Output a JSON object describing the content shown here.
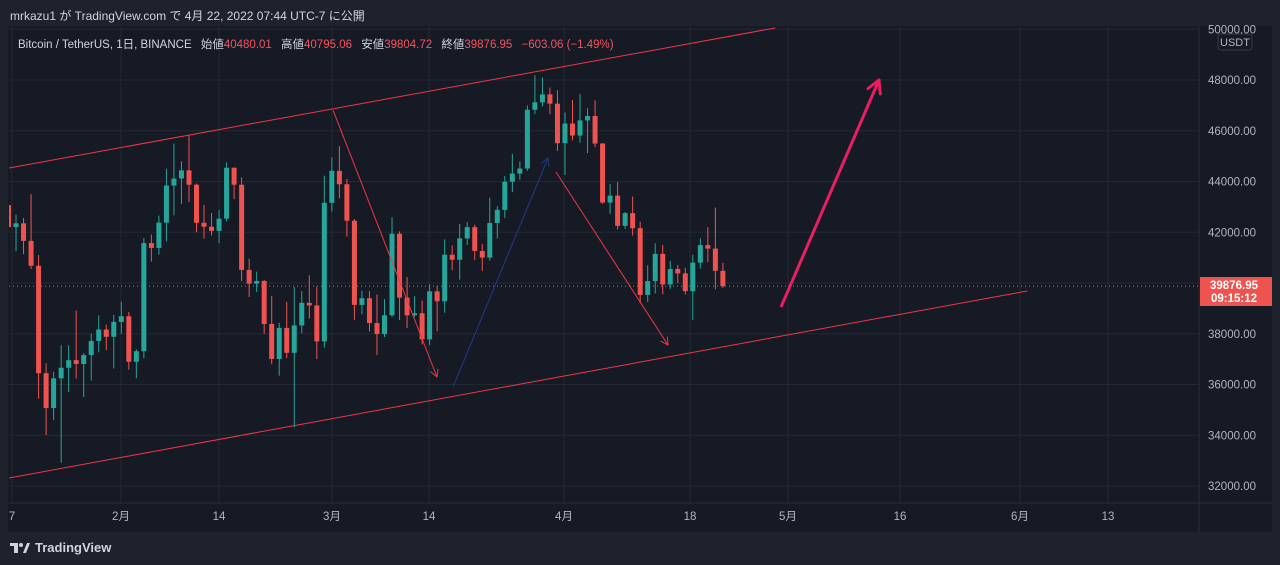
{
  "header": {
    "published": "mrkazu1 が TradingView.com で 4月 22, 2022 07:44 UTC-7 に公開"
  },
  "legend": {
    "symbol": "Bitcoin / TetherUS, 1日, BINANCE",
    "open_label": "始値",
    "open": "40480.01",
    "high_label": "高値",
    "high": "40795.06",
    "low_label": "安値",
    "low": "39804.72",
    "close_label": "終値",
    "close": "39876.95",
    "change": "−603.06 (−1.49%)"
  },
  "price_axis": {
    "currency": "USDT",
    "ticks": [
      "50000.00",
      "48000.00",
      "46000.00",
      "44000.00",
      "42000.00",
      "38000.00",
      "36000.00",
      "34000.00",
      "32000.00"
    ],
    "last_price": "39876.95",
    "countdown": "09:15:12"
  },
  "time_axis": {
    "ticks": [
      "7",
      "2月",
      "14",
      "3月",
      "14",
      "4月",
      "18",
      "5月",
      "16",
      "6月",
      "13"
    ]
  },
  "footer": {
    "brand": "TradingView"
  },
  "colors": {
    "up": "#26a69a",
    "down": "#ef5350",
    "background": "#161a25",
    "channel": "#f23645",
    "blue_arrow": "#1e3a8a",
    "pink_arrow": "#e91e63"
  },
  "chart_data": {
    "type": "candlestick",
    "title": "Bitcoin / TetherUS, 1日, BINANCE",
    "first_date": "2022-01-17",
    "ylim": [
      31500,
      50500
    ],
    "ylabel": "USDT",
    "ohlc": [
      [
        43071,
        43176,
        41540,
        42201
      ],
      [
        42201,
        42691,
        41250,
        42352
      ],
      [
        42352,
        42559,
        41138,
        41660
      ],
      [
        41660,
        43505,
        40553,
        40680
      ],
      [
        40680,
        41100,
        35440,
        36445
      ],
      [
        36445,
        36835,
        34008,
        35071
      ],
      [
        35071,
        36499,
        34601,
        36244
      ],
      [
        36244,
        37550,
        32917,
        36660
      ],
      [
        36660,
        37545,
        35701,
        36958
      ],
      [
        36958,
        38919,
        36234,
        36809
      ],
      [
        36809,
        37234,
        35507,
        37160
      ],
      [
        37160,
        38000,
        36155,
        37716
      ],
      [
        37716,
        38720,
        37268,
        38166
      ],
      [
        38166,
        38359,
        37351,
        37881
      ],
      [
        37881,
        38744,
        36632,
        38466
      ],
      [
        38466,
        39265,
        38000,
        38690
      ],
      [
        38690,
        38855,
        36586,
        36896
      ],
      [
        36896,
        37387,
        36250,
        37311
      ],
      [
        37311,
        41772,
        37026,
        41574
      ],
      [
        41574,
        41913,
        40843,
        41382
      ],
      [
        41382,
        42656,
        41116,
        42380
      ],
      [
        42380,
        44500,
        41645,
        43840
      ],
      [
        43840,
        45492,
        42666,
        44118
      ],
      [
        44118,
        44798,
        43117,
        44439
      ],
      [
        44439,
        45821,
        43188,
        43873
      ],
      [
        43873,
        43920,
        42000,
        42373
      ],
      [
        42373,
        43079,
        41748,
        42217
      ],
      [
        42217,
        42760,
        41870,
        42053
      ],
      [
        42053,
        42876,
        41570,
        42535
      ],
      [
        42535,
        44751,
        42427,
        44544
      ],
      [
        44544,
        44549,
        43307,
        43873
      ],
      [
        43873,
        44164,
        40073,
        40515
      ],
      [
        40515,
        40959,
        39450,
        39974
      ],
      [
        39974,
        40444,
        39639,
        40079
      ],
      [
        40079,
        40125,
        38000,
        38386
      ],
      [
        38386,
        39494,
        36800,
        37008
      ],
      [
        37008,
        38429,
        36350,
        38230
      ],
      [
        38230,
        39249,
        37036,
        37250
      ],
      [
        37250,
        39843,
        34322,
        38328
      ],
      [
        38328,
        39683,
        38014,
        39219
      ],
      [
        39219,
        40300,
        38600,
        39116
      ],
      [
        39116,
        39855,
        37000,
        37699
      ],
      [
        37699,
        44225,
        37450,
        43160
      ],
      [
        43160,
        44949,
        42809,
        44421
      ],
      [
        44421,
        45400,
        43334,
        43892
      ],
      [
        43892,
        44102,
        41832,
        42454
      ],
      [
        42454,
        42527,
        38550,
        39137
      ],
      [
        39137,
        39694,
        38772,
        39400
      ],
      [
        39400,
        39680,
        38088,
        38420
      ],
      [
        38420,
        39547,
        37155,
        37988
      ],
      [
        37988,
        39362,
        37867,
        38730
      ],
      [
        38730,
        42594,
        38656,
        41941
      ],
      [
        41941,
        42039,
        38540,
        39422
      ],
      [
        39422,
        40236,
        38223,
        38729
      ],
      [
        38729,
        39486,
        38660,
        38807
      ],
      [
        38807,
        39310,
        37578,
        37777
      ],
      [
        37777,
        39947,
        37555,
        39671
      ],
      [
        39671,
        39887,
        38098,
        39280
      ],
      [
        39280,
        41718,
        38828,
        41114
      ],
      [
        41114,
        41478,
        40500,
        40917
      ],
      [
        40917,
        42325,
        40135,
        41757
      ],
      [
        41757,
        42400,
        41499,
        42201
      ],
      [
        42201,
        42296,
        40911,
        41262
      ],
      [
        41262,
        41544,
        40467,
        41002
      ],
      [
        41002,
        43361,
        40875,
        42364
      ],
      [
        42364,
        43025,
        41751,
        42882
      ],
      [
        42882,
        44220,
        42560,
        43991
      ],
      [
        43991,
        45094,
        43579,
        44313
      ],
      [
        44313,
        44792,
        44071,
        44511
      ],
      [
        44511,
        46999,
        44421,
        46827
      ],
      [
        46827,
        48189,
        46663,
        47122
      ],
      [
        47122,
        48096,
        46950,
        47434
      ],
      [
        47434,
        47700,
        46655,
        47067
      ],
      [
        47067,
        47600,
        45200,
        45510
      ],
      [
        45510,
        46720,
        44255,
        46283
      ],
      [
        46283,
        47213,
        45620,
        45811
      ],
      [
        45811,
        47444,
        45530,
        46407
      ],
      [
        46407,
        46890,
        45118,
        46580
      ],
      [
        46580,
        47200,
        45353,
        45497
      ],
      [
        45497,
        45507,
        43121,
        43170
      ],
      [
        43170,
        43900,
        42727,
        43444
      ],
      [
        43444,
        43970,
        42107,
        42252
      ],
      [
        42252,
        42800,
        42125,
        42753
      ],
      [
        42753,
        43410,
        41868,
        42158
      ],
      [
        42158,
        42414,
        39200,
        39530
      ],
      [
        39530,
        40699,
        39254,
        40074
      ],
      [
        40074,
        41561,
        39588,
        41147
      ],
      [
        41147,
        41500,
        39551,
        39942
      ],
      [
        39942,
        40870,
        39766,
        40552
      ],
      [
        40552,
        40709,
        39991,
        40378
      ],
      [
        40378,
        40595,
        39546,
        39678
      ],
      [
        39678,
        41116,
        38536,
        40801
      ],
      [
        40801,
        41760,
        40571,
        41493
      ],
      [
        41493,
        42199,
        40820,
        41358
      ],
      [
        41358,
        42976,
        39751,
        40480
      ],
      [
        40480,
        40795,
        39804,
        39876.95
      ]
    ]
  }
}
